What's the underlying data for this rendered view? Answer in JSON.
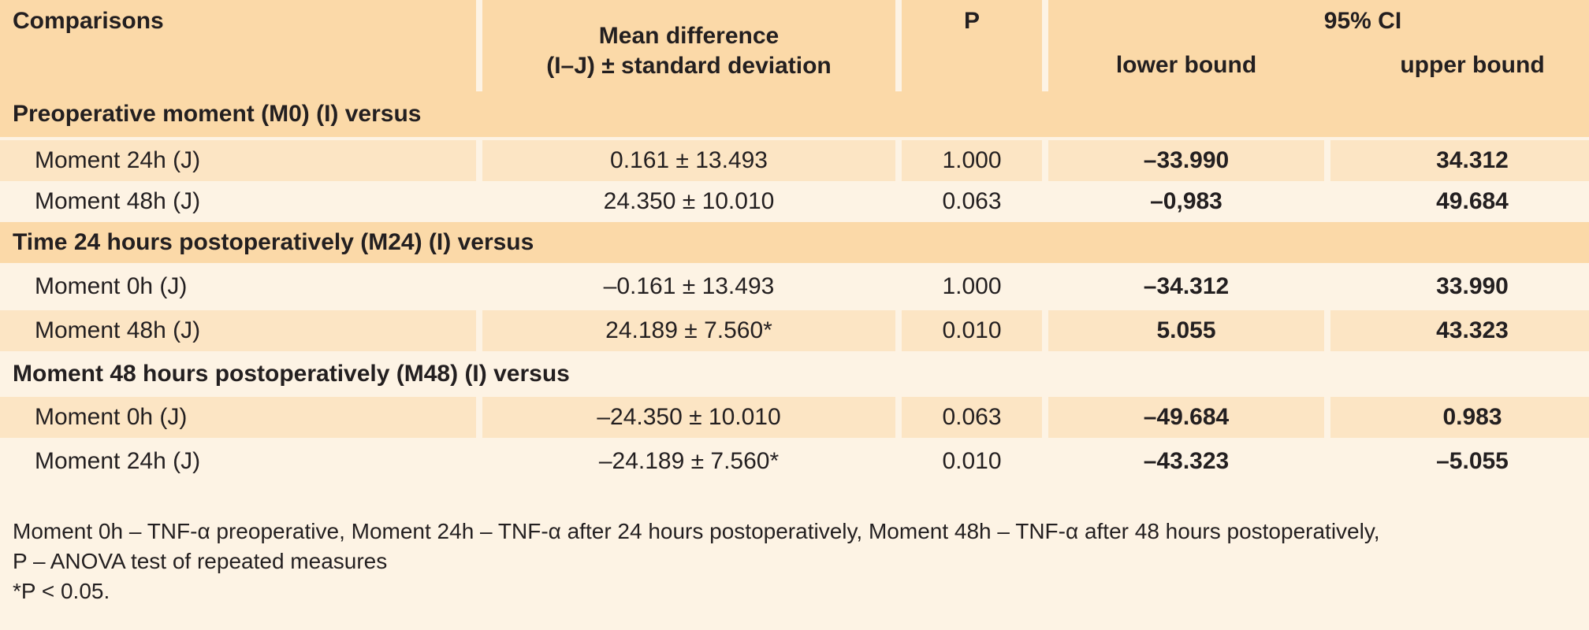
{
  "header": {
    "comparisons": "Comparisons",
    "mean_diff_line1": "Mean difference",
    "mean_diff_line2": "(I–J) ± standard deviation",
    "p": "P",
    "ci": "95% CI",
    "lower": "lower bound",
    "upper": "upper bound"
  },
  "sections": [
    {
      "title": "Preoperative moment (M0) (I) versus",
      "rows": [
        {
          "label": "Moment 24h (J)",
          "mean": "0.161 ± 13.493",
          "p": "1.000",
          "lower": "–33.990",
          "upper": "34.312"
        },
        {
          "label": "Moment 48h (J)",
          "mean": "24.350 ± 10.010",
          "p": "0.063",
          "lower": "–0,983",
          "upper": "49.684"
        }
      ]
    },
    {
      "title": "Time 24 hours postoperatively (M24) (I) versus",
      "rows": [
        {
          "label": "Moment 0h (J)",
          "mean": "–0.161 ± 13.493",
          "p": "1.000",
          "lower": "–34.312",
          "upper": "33.990"
        },
        {
          "label": "Moment 48h (J)",
          "mean": "24.189 ± 7.560*",
          "p": "0.010",
          "lower": "5.055",
          "upper": "43.323"
        }
      ]
    },
    {
      "title": "Moment 48 hours postoperatively (M48) (I) versus",
      "rows": [
        {
          "label": "Moment 0h (J)",
          "mean": "–24.350 ± 10.010",
          "p": "0.063",
          "lower": "–49.684",
          "upper": "0.983"
        },
        {
          "label": "Moment 24h (J)",
          "mean": "–24.189 ± 7.560*",
          "p": "0.010",
          "lower": "–43.323",
          "upper": "–5.055"
        }
      ]
    }
  ],
  "footer": {
    "line1": "Moment 0h – TNF-α preoperative, Moment 24h – TNF-α after 24 hours postoperatively, Moment 48h – TNF-α after 48 hours postoperatively,",
    "line2": "P – ANOVA test of repeated measures",
    "line3": "*P < 0.05."
  }
}
